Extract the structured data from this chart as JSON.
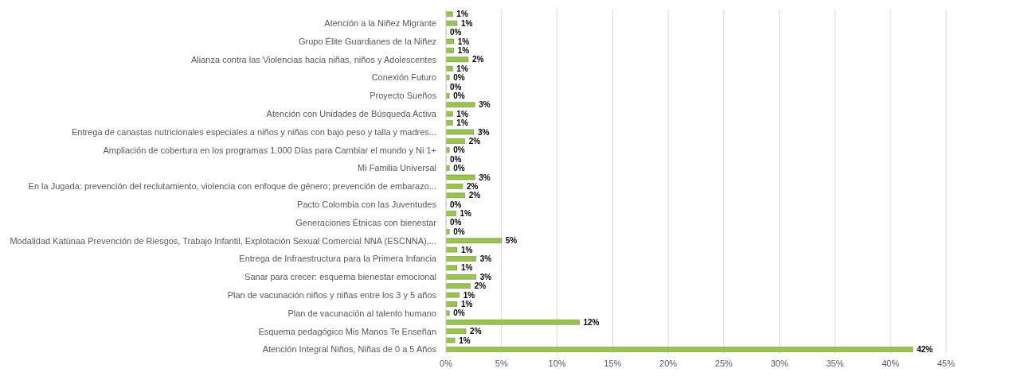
{
  "chart_data": {
    "type": "bar",
    "orientation": "horizontal",
    "categories": [
      null,
      "Atención a la Niñez Migrante",
      null,
      "Grupo Élite Guardianes de la Niñez",
      null,
      "Alianza contra las Violencias hacia niñas, niños y Adolescentes",
      null,
      "Conexión Futuro",
      null,
      "Proyecto Sueños",
      null,
      "Atención con Unidades de Búsqueda Activa",
      null,
      "Entrega de canastas nutricionales especiales a niños y niñas con bajo peso y talla y madres...",
      null,
      "Ampliación de cobertura en los programas 1.000 Días para Cambiar el mundo y Ni 1+",
      null,
      "Mi Familia Universal",
      null,
      "En la Jugada: prevención del reclutamiento, violencia con enfoque de género; prevención de embarazo...",
      null,
      "Pacto Colombia con las Juventudes",
      null,
      "Generaciones Étnicas con bienestar",
      null,
      "Modalidad Katünaa  Prevención de Riesgos, Trabajo Infantil, Explotación Sexual Comercial NNA (ESCNNA),...",
      null,
      "Entrega de Infraestructura para la Primera Infancia",
      null,
      "Sanar para crecer: esquema bienestar emocional",
      null,
      "Plan de vacunación niños y niñas entre los 3 y 5 años",
      null,
      "Plan de vacunación al talento humano",
      null,
      "Esquema pedagógico Mis Manos Te Enseñan",
      null,
      "Atención Integral Niños, Niñas de 0 a 5 Años"
    ],
    "values": [
      0.6,
      1.0,
      0,
      0.7,
      0.7,
      2.0,
      0.6,
      0.3,
      0,
      0.3,
      2.6,
      0.6,
      0.6,
      2.5,
      1.7,
      0.3,
      0,
      0.3,
      2.6,
      1.5,
      1.7,
      0,
      0.9,
      0,
      0.3,
      5.0,
      1.0,
      2.7,
      1.0,
      2.7,
      2.2,
      1.2,
      1.0,
      0.3,
      12.0,
      1.8,
      0.8,
      42.0
    ],
    "value_labels": [
      "1%",
      "1%",
      "0%",
      "1%",
      "1%",
      "2%",
      "1%",
      "0%",
      "0%",
      "0%",
      "3%",
      "1%",
      "1%",
      "3%",
      "2%",
      "0%",
      "0%",
      "0%",
      "3%",
      "2%",
      "2%",
      "0%",
      "1%",
      "0%",
      "0%",
      "5%",
      "1%",
      "3%",
      "1%",
      "3%",
      "2%",
      "1%",
      "1%",
      "0%",
      "12%",
      "2%",
      "1%",
      "42%"
    ],
    "color": "#9bc34f",
    "xlim": [
      0,
      45
    ],
    "xticks": [
      {
        "value": 0,
        "label": "0%"
      },
      {
        "value": 5,
        "label": "5%"
      },
      {
        "value": 10,
        "label": "10%"
      },
      {
        "value": 15,
        "label": "15%"
      },
      {
        "value": 20,
        "label": "20%"
      },
      {
        "value": 25,
        "label": "25%"
      },
      {
        "value": 30,
        "label": "30%"
      },
      {
        "value": 35,
        "label": "35%"
      },
      {
        "value": 40,
        "label": "40%"
      },
      {
        "value": 45,
        "label": "45%"
      }
    ],
    "grid": "x"
  }
}
